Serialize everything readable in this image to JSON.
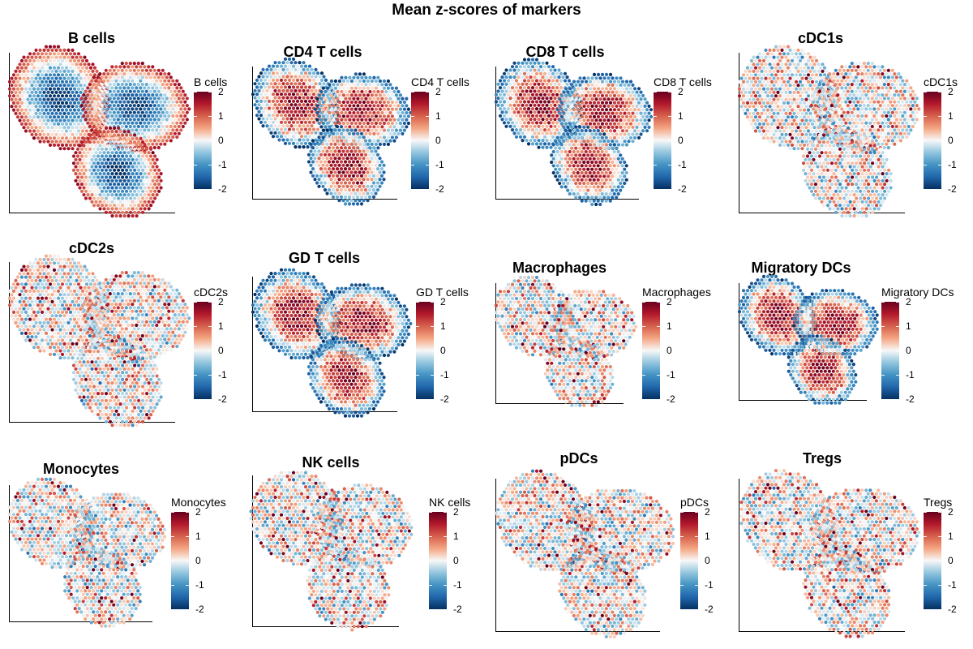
{
  "figure_title": "Mean z-scores of markers",
  "colorscale": {
    "name": "RdBu (reversed)",
    "colors": [
      "#053061",
      "#2166ac",
      "#4393c3",
      "#92c5de",
      "#f7f7f7",
      "#f4a582",
      "#d6604d",
      "#b2182b",
      "#67001f"
    ],
    "ticks": [
      2,
      1,
      0,
      -1,
      -2
    ]
  },
  "chart_data": [
    {
      "type": "heatmap",
      "title": "B cells",
      "legend_title": "B cells",
      "colorbar_range": [
        -2,
        2
      ],
      "spatial_pattern": "core-low / rim-high"
    },
    {
      "type": "heatmap",
      "title": "CD4 T cells",
      "legend_title": "CD4 T cells",
      "colorbar_range": [
        -2,
        2
      ],
      "spatial_pattern": "core-high / rim-low"
    },
    {
      "type": "heatmap",
      "title": "CD8 T cells",
      "legend_title": "CD8 T cells",
      "colorbar_range": [
        -2,
        2
      ],
      "spatial_pattern": "core-high / rim-low"
    },
    {
      "type": "heatmap",
      "title": "cDC1s",
      "legend_title": "cDC1s",
      "colorbar_range": [
        -2,
        2
      ],
      "spatial_pattern": "scattered"
    },
    {
      "type": "heatmap",
      "title": "cDC2s",
      "legend_title": "cDC2s",
      "colorbar_range": [
        -2,
        2
      ],
      "spatial_pattern": "scattered"
    },
    {
      "type": "heatmap",
      "title": "GD T cells",
      "legend_title": "GD T cells",
      "colorbar_range": [
        -2,
        2
      ],
      "spatial_pattern": "core-high / rim-low"
    },
    {
      "type": "heatmap",
      "title": "Macrophages",
      "legend_title": "Macrophages",
      "colorbar_range": [
        -2,
        2
      ],
      "spatial_pattern": "scattered"
    },
    {
      "type": "heatmap",
      "title": "Migratory DCs",
      "legend_title": "Migratory DCs",
      "colorbar_range": [
        -2,
        2
      ],
      "spatial_pattern": "core-high / rim-low"
    },
    {
      "type": "heatmap",
      "title": "Monocytes",
      "legend_title": "Monocytes",
      "colorbar_range": [
        -2,
        2
      ],
      "spatial_pattern": "scattered"
    },
    {
      "type": "heatmap",
      "title": "NK cells",
      "legend_title": "NK cells",
      "colorbar_range": [
        -2,
        2
      ],
      "spatial_pattern": "scattered"
    },
    {
      "type": "heatmap",
      "title": "pDCs",
      "legend_title": "pDCs",
      "colorbar_range": [
        -2,
        2
      ],
      "spatial_pattern": "scattered"
    },
    {
      "type": "heatmap",
      "title": "Tregs",
      "legend_title": "Tregs",
      "colorbar_range": [
        -2,
        2
      ],
      "spatial_pattern": "scattered"
    }
  ]
}
